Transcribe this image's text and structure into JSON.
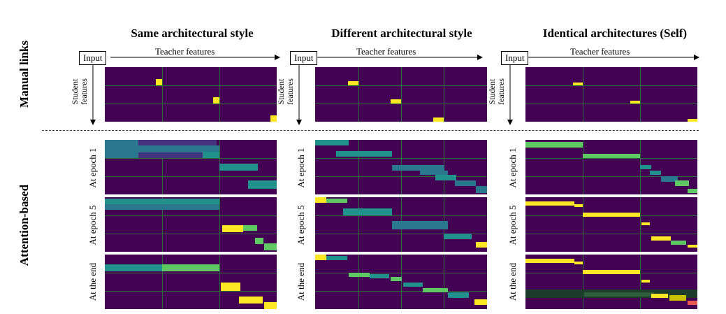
{
  "columns": [
    {
      "title": "Same architectural style"
    },
    {
      "title": "Different architectural style"
    },
    {
      "title": "Identical architectures (Self)"
    }
  ],
  "rows": {
    "manual": "Manual links",
    "attention": "Attention-based"
  },
  "axis": {
    "input": "Input",
    "teacher": "Teacher features",
    "student_line1": "Student",
    "student_line2": "features"
  },
  "epochs": [
    "At epoch 1",
    "At epoch 5",
    "At the end"
  ],
  "colors": {
    "background": "#440154",
    "grid": "#2b6b3a",
    "low": "#46337f",
    "mid": "#2a788e",
    "teal": "#21918c",
    "green": "#5ec962",
    "yellow": "#fde725"
  }
}
